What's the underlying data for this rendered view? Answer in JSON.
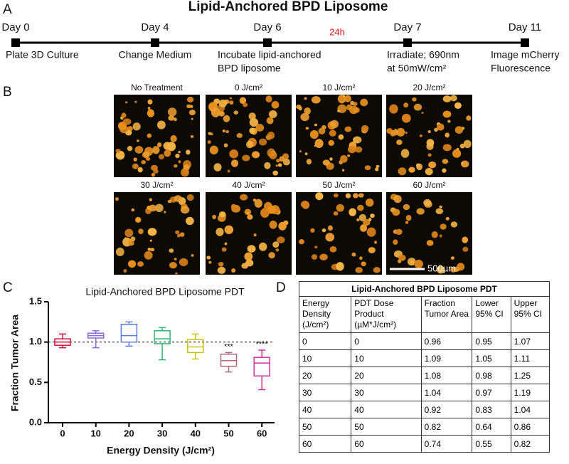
{
  "panel_labels": [
    "A",
    "B",
    "C",
    "D"
  ],
  "title": "Lipid-Anchored BPD Liposome",
  "timeline": {
    "events": [
      {
        "day": "Day 0",
        "label": [
          "Plate 3D Culture"
        ]
      },
      {
        "day": "Day 4",
        "label": [
          "Change Medium"
        ]
      },
      {
        "day": "Day 6",
        "label": [
          "Incubate lipid-anchored",
          "BPD liposome"
        ]
      },
      {
        "day": "Day 7",
        "label": [
          "Irradiate; 690nm",
          "at 50mW/cm²"
        ]
      },
      {
        "day": "Day 11",
        "label": [
          "Image mCherry",
          "Fluorescence"
        ]
      }
    ],
    "gap_label": "24h"
  },
  "images": {
    "labels": [
      "No Treatment",
      "0 J/cm²",
      "10 J/cm²",
      "20 J/cm²",
      "30 J/cm²",
      "40 J/cm²",
      "50 J/cm²",
      "60 J/cm²"
    ],
    "scale_bar": "500µm"
  },
  "chart_data": {
    "type": "box",
    "title": "Lipid-Anchored BPD Liposome PDT",
    "x_label": "Energy Density (J/cm²)",
    "y_label": "Fraction Tumor Area",
    "categories": [
      "0",
      "10",
      "20",
      "30",
      "40",
      "50",
      "60"
    ],
    "boxes": [
      {
        "min": 0.93,
        "q1": 0.96,
        "median": 1.0,
        "q3": 1.04,
        "max": 1.1,
        "color": "#d0103a"
      },
      {
        "min": 0.93,
        "q1": 1.05,
        "median": 1.08,
        "q3": 1.11,
        "max": 1.14,
        "color": "#8a6ad6"
      },
      {
        "min": 0.95,
        "q1": 1.0,
        "median": 1.08,
        "q3": 1.22,
        "max": 1.25,
        "color": "#5b7bd6"
      },
      {
        "min": 0.78,
        "q1": 0.98,
        "median": 1.04,
        "q3": 1.14,
        "max": 1.18,
        "color": "#2bb673"
      },
      {
        "min": 0.79,
        "q1": 0.87,
        "median": 0.94,
        "q3": 1.03,
        "max": 1.1,
        "color": "#c9c400"
      },
      {
        "min": 0.63,
        "q1": 0.7,
        "median": 0.77,
        "q3": 0.85,
        "max": 0.87,
        "color": "#b06a7a"
      },
      {
        "min": 0.41,
        "q1": 0.58,
        "median": 0.74,
        "q3": 0.81,
        "max": 0.9,
        "color": "#d0309c"
      }
    ],
    "annotations": [
      null,
      null,
      null,
      null,
      null,
      "***",
      "****"
    ],
    "reference_line": 1.0,
    "ylim": [
      0,
      1.5
    ],
    "yticks": [
      {
        "value": 0,
        "label": "0.0"
      },
      0.5,
      {
        "value": 1,
        "label": "1.0"
      },
      1.5
    ]
  },
  "table": {
    "title": "Lipid-Anchored BPD Liposome PDT",
    "header": [
      "Energy Density (J/cm²)",
      "PDT Dose Product (µM*J/cm²)",
      "Fraction Tumor Area",
      "Lower 95% CI",
      "Upper 95% CI"
    ],
    "rows": [
      [
        0,
        0,
        0.96,
        0.95,
        1.07
      ],
      [
        10,
        10,
        1.09,
        1.05,
        1.11
      ],
      [
        20,
        20,
        1.08,
        0.98,
        1.25
      ],
      [
        30,
        30,
        1.04,
        0.97,
        1.19
      ],
      [
        40,
        40,
        0.92,
        0.83,
        1.04
      ],
      [
        50,
        50,
        0.82,
        0.64,
        0.86
      ],
      [
        60,
        60,
        0.74,
        0.55,
        0.82
      ]
    ]
  }
}
